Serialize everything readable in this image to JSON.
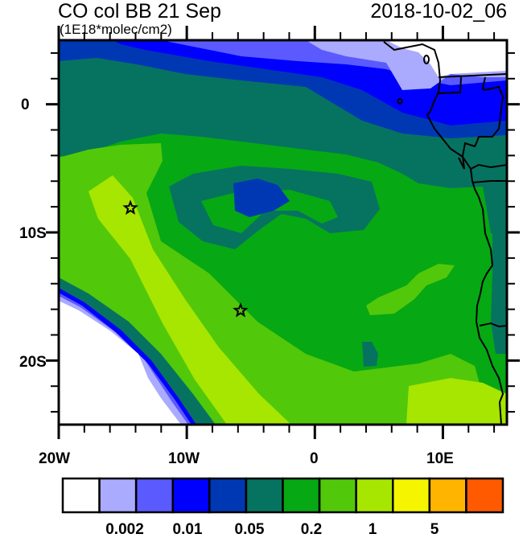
{
  "header": {
    "title": "CO col BB 21 Sep",
    "units": "(1E18*molec/cm2)",
    "datetime": "2018-10-02_06"
  },
  "axes": {
    "lat_labels": [
      "0",
      "10S",
      "20S"
    ],
    "lon_labels": [
      "20W",
      "10W",
      "0",
      "10E"
    ]
  },
  "map": {
    "lon_range": [
      -20,
      15
    ],
    "lat_range": [
      -25,
      5
    ],
    "markers": [
      {
        "type": "star",
        "lon": -14.4,
        "lat": -8.1
      },
      {
        "type": "star",
        "lon": -5.8,
        "lat": -16.1
      }
    ]
  },
  "colorbar": {
    "colors": [
      "#ffffff",
      "#aaaaff",
      "#5a5aff",
      "#0000ff",
      "#0038b4",
      "#067360",
      "#06a814",
      "#52c80a",
      "#a6e600",
      "#f5f500",
      "#ffb400",
      "#ff5a00",
      "#ff0a00"
    ],
    "labels": [
      "0.002",
      "0.01",
      "0.05",
      "0.2",
      "1",
      "5"
    ]
  }
}
